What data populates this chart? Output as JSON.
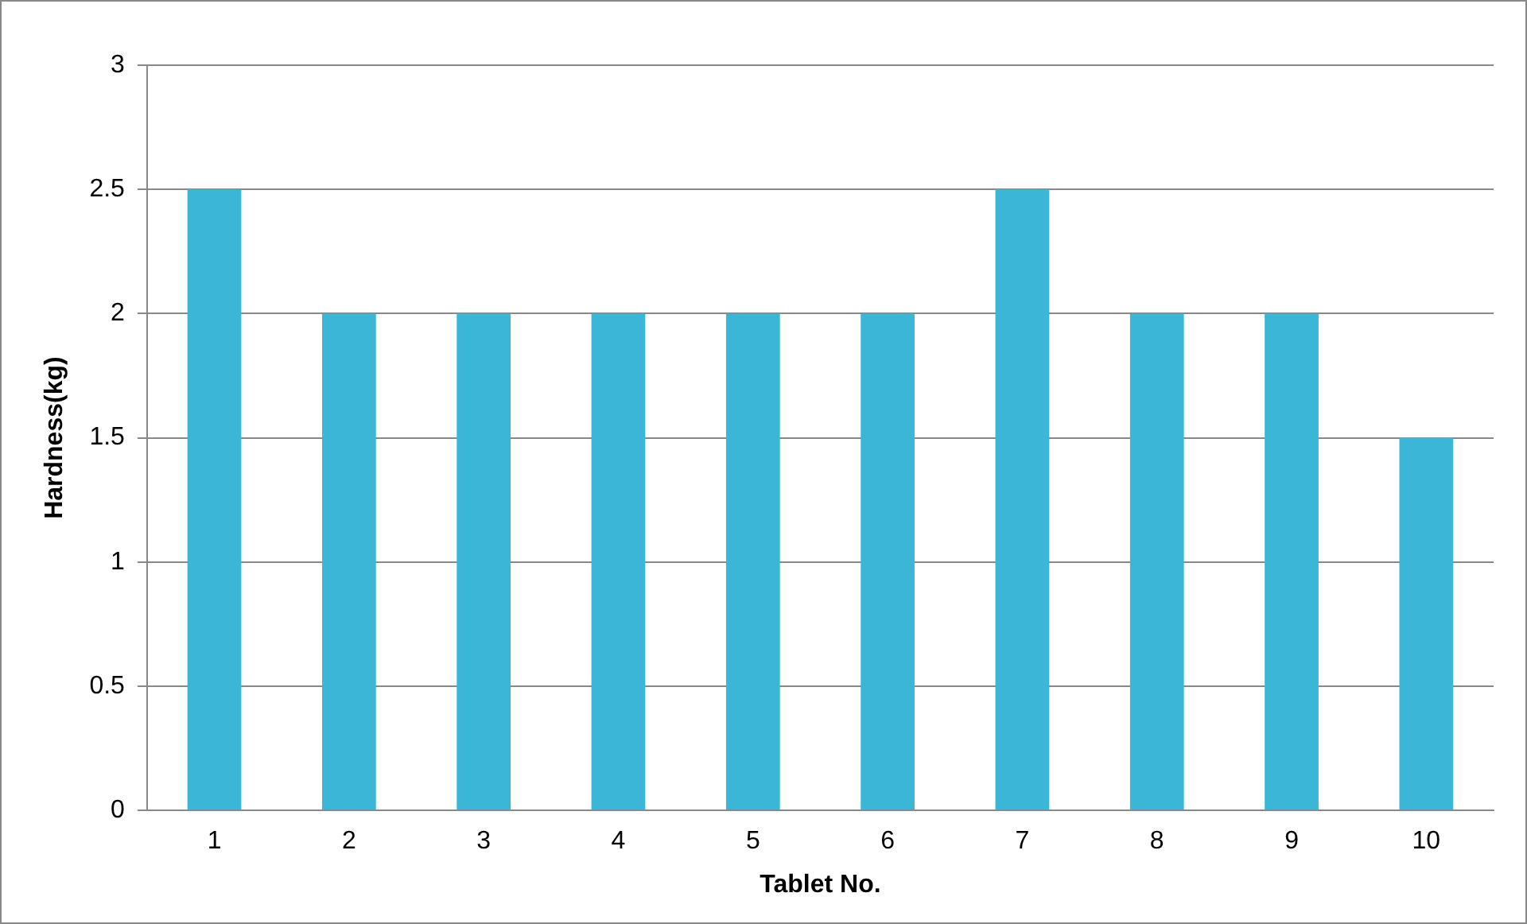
{
  "chart_data": {
    "type": "bar",
    "xlabel": "Tablet No.",
    "ylabel": "Hardness(kg)",
    "categories": [
      "1",
      "2",
      "3",
      "4",
      "5",
      "6",
      "7",
      "8",
      "9",
      "10"
    ],
    "values": [
      2.5,
      2,
      2,
      2,
      2,
      2,
      2.5,
      2,
      2,
      1.5
    ],
    "color": "#3cb6d6",
    "ylim": [
      0,
      3
    ],
    "yticks": [
      0,
      0.5,
      1,
      1.5,
      2,
      2.5,
      3
    ],
    "grid": "y",
    "legend": false
  }
}
